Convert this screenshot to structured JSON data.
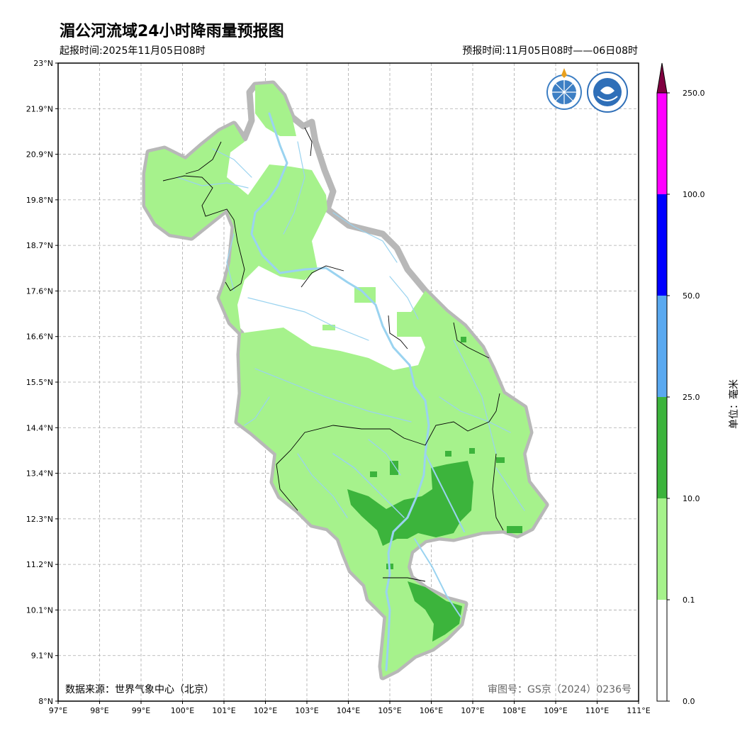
{
  "header": {
    "title": "湄公河流域24小时降雨量预报图",
    "issue_time": "起报时间:2025年11月05日08时",
    "valid_time": "预报时间:11月05日08时——06日08时"
  },
  "axes": {
    "x_ticks": [
      "97°E",
      "98°E",
      "99°E",
      "100°E",
      "101°E",
      "102°E",
      "103°E",
      "104°E",
      "105°E",
      "106°E",
      "107°E",
      "108°E",
      "109°E",
      "110°E",
      "111°E"
    ],
    "y_ticks": [
      "23°N",
      "21.9°N",
      "20.9°N",
      "19.8°N",
      "18.7°N",
      "17.6°N",
      "16.6°N",
      "15.5°N",
      "14.4°N",
      "13.4°N",
      "12.3°N",
      "11.2°N",
      "10.1°N",
      "9.1°N",
      "8°N"
    ],
    "lon_range": [
      97,
      111
    ],
    "lat_range": [
      8,
      23
    ]
  },
  "footer": {
    "source": "数据来源：世界气象中心（北京）",
    "review_no": "审图号：GS京（2024）0236号"
  },
  "colorbar": {
    "unit": "单位：毫米",
    "levels": [
      "250.0",
      "100.0",
      "50.0",
      "25.0",
      "10.0",
      "0.1",
      "0.0"
    ],
    "colors": [
      "#ff00ff",
      "#0000ff",
      "#5aa9f0",
      "#3cb43c",
      "#a6f28c",
      "#ffffff"
    ],
    "extend_color": "#800040"
  },
  "legend_colors": {
    "light_rain": "#a6f28c",
    "moderate_rain": "#3cb43c",
    "river": "#9ad3f0",
    "basin_halo": "#b8b8b8"
  },
  "logos": [
    "wmo-logo",
    "cma-logo"
  ]
}
